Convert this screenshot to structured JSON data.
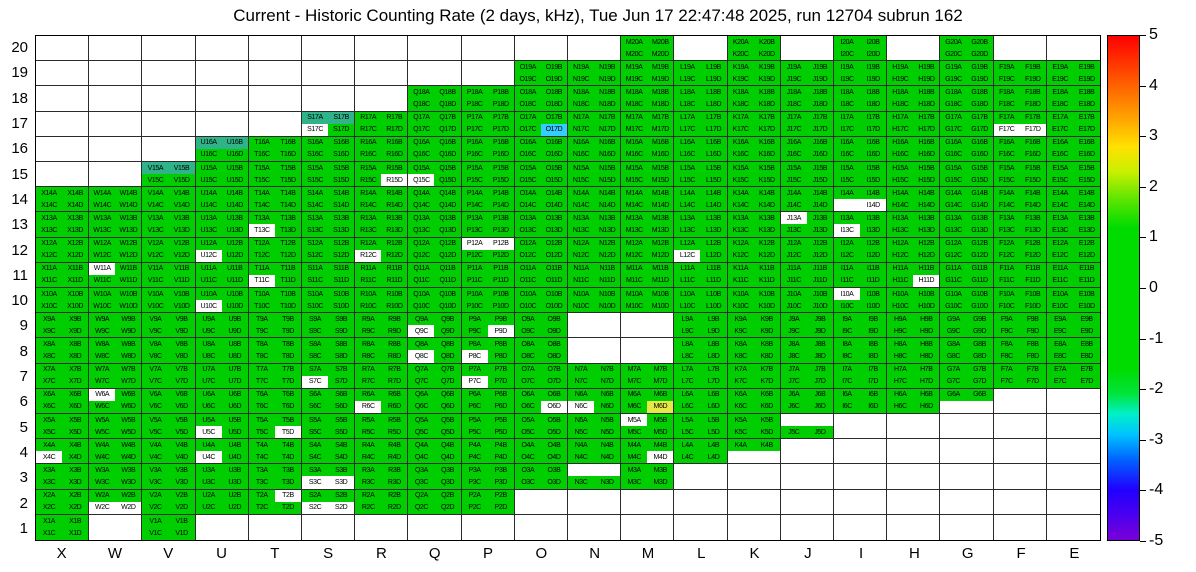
{
  "title": "Current - Historic Counting Rate (2 days, kHz), Tue Jun 17 22:47:48 2025, run 12704 subrun 162",
  "chart_data": {
    "type": "heatmap",
    "title": "Current - Historic Counting Rate (2 days, kHz), Tue Jun 17 22:47:48 2025, run 12704 subrun 162",
    "x_categories": [
      "X",
      "W",
      "V",
      "U",
      "T",
      "S",
      "R",
      "Q",
      "P",
      "O",
      "N",
      "M",
      "L",
      "K",
      "J",
      "I",
      "H",
      "G",
      "F",
      "E"
    ],
    "y_categories": [
      20,
      19,
      18,
      17,
      16,
      15,
      14,
      13,
      12,
      11,
      10,
      9,
      8,
      7,
      6,
      5,
      4,
      3,
      2,
      1
    ],
    "channels": [
      "A",
      "B",
      "C",
      "D"
    ],
    "label_format": "{column}{row}{channel}",
    "legend_position": "right",
    "grid": true,
    "colorbar": {
      "min": -5,
      "max": 5,
      "ticks": [
        5,
        4,
        3,
        2,
        1,
        0,
        -1,
        -2,
        -3,
        -4,
        -5
      ],
      "gradient_stops": [
        {
          "pos": 0,
          "color": "#7A00D8"
        },
        {
          "pos": 5,
          "color": "#4A00F0"
        },
        {
          "pos": 10,
          "color": "#2000FF"
        },
        {
          "pos": 16,
          "color": "#0064FF"
        },
        {
          "pos": 21,
          "color": "#00C4FF"
        },
        {
          "pos": 25,
          "color": "#00F0C8"
        },
        {
          "pos": 29,
          "color": "#00E43C"
        },
        {
          "pos": 34,
          "color": "#00DC00"
        },
        {
          "pos": 62,
          "color": "#00DC00"
        },
        {
          "pos": 68,
          "color": "#64E600"
        },
        {
          "pos": 73,
          "color": "#C8F000"
        },
        {
          "pos": 78,
          "color": "#FFE100"
        },
        {
          "pos": 84,
          "color": "#FFA000"
        },
        {
          "pos": 90,
          "color": "#FF6400"
        },
        {
          "pos": 96,
          "color": "#FF2800"
        },
        {
          "pos": 100,
          "color": "#FF0000"
        }
      ]
    },
    "state_colors": {
      "green": "#00CE00",
      "teal": "#2FB388",
      "cyan": "#35CCFF",
      "yellow": "#E6E945",
      "white": "#FFFFFF"
    },
    "state_value_estimates": {
      "green": 0,
      "teal": -1,
      "cyan": -2,
      "yellow": 2,
      "white": 0
    },
    "presence": {
      "20": [
        "M",
        "K",
        "I",
        "G"
      ],
      "19": [
        "O",
        "N",
        "M",
        "L",
        "K",
        "J",
        "I",
        "H",
        "G",
        "F",
        "E"
      ],
      "18": [
        "Q",
        "P",
        "O",
        "N",
        "M",
        "L",
        "K",
        "J",
        "I",
        "H",
        "G",
        "F",
        "E"
      ],
      "17": [
        "S",
        "R",
        "Q",
        "P",
        "O",
        "N",
        "M",
        "L",
        "K",
        "J",
        "I",
        "H",
        "G",
        "F",
        "E"
      ],
      "16": [
        "U",
        "T",
        "S",
        "R",
        "Q",
        "P",
        "O",
        "N",
        "M",
        "L",
        "K",
        "J",
        "I",
        "H",
        "G",
        "F",
        "E"
      ],
      "15": [
        "V",
        "U",
        "T",
        "S",
        "R",
        "Q",
        "P",
        "O",
        "N",
        "M",
        "L",
        "K",
        "J",
        "I",
        "H",
        "G",
        "F",
        "E"
      ],
      "14": [
        "X",
        "W",
        "V",
        "U",
        "T",
        "S",
        "R",
        "Q",
        "P",
        "O",
        "N",
        "M",
        "L",
        "K",
        "J",
        "I",
        "H",
        "G",
        "F",
        "E"
      ],
      "13": [
        "X",
        "W",
        "V",
        "U",
        "T",
        "S",
        "R",
        "Q",
        "P",
        "O",
        "N",
        "M",
        "L",
        "K",
        "J",
        "I",
        "H",
        "G",
        "F",
        "E"
      ],
      "12": [
        "X",
        "W",
        "V",
        "U",
        "T",
        "S",
        "R",
        "Q",
        "P",
        "O",
        "N",
        "M",
        "L",
        "K",
        "J",
        "I",
        "H",
        "G",
        "F",
        "E"
      ],
      "11": [
        "X",
        "W",
        "V",
        "U",
        "T",
        "S",
        "R",
        "Q",
        "P",
        "O",
        "N",
        "M",
        "L",
        "K",
        "J",
        "I",
        "H",
        "G",
        "F",
        "E"
      ],
      "10": [
        "X",
        "W",
        "V",
        "U",
        "T",
        "S",
        "R",
        "Q",
        "P",
        "O",
        "N",
        "M",
        "L",
        "K",
        "J",
        "I",
        "H",
        "G",
        "F",
        "E"
      ],
      "9": [
        "X",
        "W",
        "V",
        "U",
        "T",
        "S",
        "R",
        "Q",
        "P",
        "O",
        "L",
        "K",
        "J",
        "I",
        "H",
        "G",
        "F",
        "E"
      ],
      "8": [
        "X",
        "W",
        "V",
        "U",
        "T",
        "S",
        "R",
        "Q",
        "P",
        "O",
        "L",
        "K",
        "J",
        "I",
        "H",
        "G",
        "F",
        "E"
      ],
      "7": [
        "X",
        "W",
        "V",
        "U",
        "T",
        "S",
        "R",
        "Q",
        "P",
        "O",
        "N",
        "M",
        "L",
        "K",
        "J",
        "I",
        "H",
        "G",
        "F",
        "E"
      ],
      "6": [
        "X",
        "W",
        "V",
        "U",
        "T",
        "S",
        "R",
        "Q",
        "P",
        "O",
        "N",
        "M",
        "L",
        "K",
        "J",
        "I",
        "H",
        "G"
      ],
      "5": [
        "X",
        "W",
        "V",
        "U",
        "T",
        "S",
        "R",
        "Q",
        "P",
        "O",
        "N",
        "M",
        "L",
        "K",
        "J"
      ],
      "4": [
        "X",
        "W",
        "V",
        "U",
        "T",
        "S",
        "R",
        "Q",
        "P",
        "O",
        "N",
        "M",
        "L",
        "K"
      ],
      "3": [
        "X",
        "W",
        "V",
        "U",
        "T",
        "S",
        "R",
        "Q",
        "P",
        "O",
        "N",
        "M"
      ],
      "2": [
        "X",
        "W",
        "V",
        "U",
        "T",
        "S",
        "R",
        "Q",
        "P"
      ],
      "1": [
        "X",
        "V"
      ]
    },
    "specials": {
      "S17A": "teal",
      "S17B": "teal",
      "S17C": "white",
      "O17D": "cyan",
      "F17C": "white",
      "F17D": "white",
      "U16A": "teal",
      "U16B": "teal",
      "V15A": "teal",
      "V15B": "teal",
      "R15D": "white",
      "Q15C": "white",
      "I14C": "empty",
      "I14D": "white",
      "T13C": "white",
      "J13A": "white",
      "I13C": "white",
      "U12C": "white",
      "R12C": "white",
      "P12A": "white",
      "P12B": "white",
      "L12C": "white",
      "W11A": "white",
      "T11C": "white",
      "H11D": "white",
      "U10C": "white",
      "I10A": "white",
      "Q9C": "white",
      "P9D": "white",
      "Q8C": "white",
      "P8C": "white",
      "S7C": "white",
      "P7C": "white",
      "W6A": "white",
      "R6C": "white",
      "O6D": "white",
      "N6C": "white",
      "M6D": "yellow",
      "G6C": "empty",
      "G6D": "empty",
      "U5C": "white",
      "T5D": "white",
      "M5A": "white",
      "J5A": "empty",
      "J5B": "empty",
      "X4C": "white",
      "U4C": "white",
      "M4D": "white",
      "K4C": "empty",
      "K4D": "empty",
      "S3C": "white",
      "S3D": "white",
      "N3A": "empty",
      "N3B": "empty",
      "W2C": "white",
      "W2D": "white",
      "T2B": "white",
      "S2C": "white",
      "S2D": "white"
    }
  }
}
